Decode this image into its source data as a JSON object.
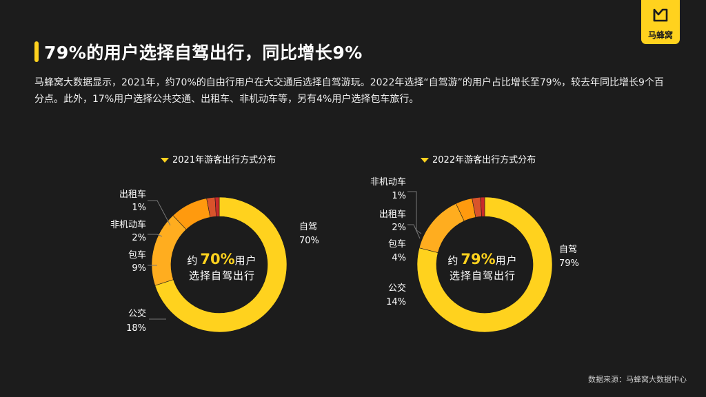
{
  "header": {
    "title": "79%的用户选择自驾出行，同比增长9%",
    "description": "马蜂窝大数据显示，2021年，约70%的自由行用户在大交通后选择自驾游玩。2022年选择“自驾游”的用户占比增长至79%，较去年同比增长9个百分点。此外，17%用户选择公共交通、出租车、非机动车等，另有4%用户选择包车旅行。"
  },
  "logo": {
    "text": "马蜂窝",
    "icon": "mafengwo-m-logo-icon"
  },
  "colors": {
    "background": "#1c1c1c",
    "accent": "#ffd21e",
    "self_drive": "#ffd21e",
    "public_transit": "#ffad1f",
    "charter": "#ff9a0e",
    "non_motor": "#d9542b",
    "taxi": "#c92a2a"
  },
  "chart_data": [
    {
      "type": "pie",
      "variant": "donut",
      "title": "2021年游客出行方式分布",
      "categories": [
        "自驾",
        "公交",
        "包车",
        "非机动车",
        "出租车"
      ],
      "values": [
        70,
        18,
        9,
        2,
        1
      ],
      "value_labels": [
        "70%",
        "18%",
        "9%",
        "2%",
        "1%"
      ],
      "colors": [
        "#ffd21e",
        "#ffad1f",
        "#ff9a0e",
        "#d9542b",
        "#c92a2a"
      ],
      "center": {
        "prefix": "约",
        "value": "70%",
        "suffix": "用户",
        "line2": "选择自驾出行"
      }
    },
    {
      "type": "pie",
      "variant": "donut",
      "title": "2022年游客出行方式分布",
      "categories": [
        "自驾",
        "公交",
        "包车",
        "出租车",
        "非机动车"
      ],
      "values": [
        79,
        14,
        4,
        2,
        1
      ],
      "value_labels": [
        "79%",
        "14%",
        "4%",
        "2%",
        "1%"
      ],
      "colors": [
        "#ffd21e",
        "#ffad1f",
        "#ff9a0e",
        "#d9542b",
        "#c92a2a"
      ],
      "center": {
        "prefix": "约",
        "value": "79%",
        "suffix": "用户",
        "line2": "选择自驾出行"
      }
    }
  ],
  "source": "数据来源：马蜂窝大数据中心"
}
